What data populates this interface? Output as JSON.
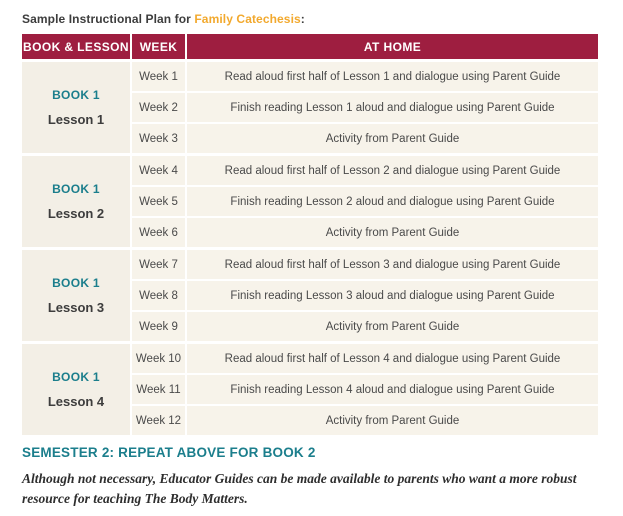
{
  "title": {
    "prefix": "Sample Instructional Plan for",
    "highlight": "Family Catechesis",
    "suffix": ":"
  },
  "table": {
    "headers": [
      "BOOK & LESSON",
      "WEEK",
      "AT HOME"
    ],
    "groups": [
      {
        "book": "BOOK 1",
        "lesson": "Lesson 1",
        "rows": [
          {
            "week": "Week 1",
            "at_home": "Read aloud first half of Lesson 1 and dialogue using Parent Guide"
          },
          {
            "week": "Week 2",
            "at_home": "Finish reading Lesson 1 aloud and dialogue using Parent Guide"
          },
          {
            "week": "Week 3",
            "at_home": "Activity from Parent Guide"
          }
        ]
      },
      {
        "book": "BOOK 1",
        "lesson": "Lesson 2",
        "rows": [
          {
            "week": "Week 4",
            "at_home": "Read aloud first half of Lesson 2 and dialogue using Parent Guide"
          },
          {
            "week": "Week 5",
            "at_home": "Finish reading Lesson 2 aloud and dialogue using Parent Guide"
          },
          {
            "week": "Week 6",
            "at_home": "Activity from Parent Guide"
          }
        ]
      },
      {
        "book": "BOOK 1",
        "lesson": "Lesson 3",
        "rows": [
          {
            "week": "Week 7",
            "at_home": "Read aloud first half of Lesson 3 and dialogue using Parent Guide"
          },
          {
            "week": "Week 8",
            "at_home": "Finish reading Lesson 3 aloud and dialogue using Parent Guide"
          },
          {
            "week": "Week 9",
            "at_home": "Activity from Parent Guide"
          }
        ]
      },
      {
        "book": "BOOK 1",
        "lesson": "Lesson 4",
        "rows": [
          {
            "week": "Week 10",
            "at_home": "Read aloud first half of Lesson 4 and dialogue using Parent Guide"
          },
          {
            "week": "Week 11",
            "at_home": "Finish reading Lesson 4 aloud and dialogue using Parent Guide"
          },
          {
            "week": "Week 12",
            "at_home": "Activity from Parent Guide"
          }
        ]
      }
    ]
  },
  "semester_note": "SEMESTER 2: REPEAT ABOVE FOR BOOK 2",
  "footnote": "Although not necessary, Educator Guides can be made available to parents who want a more robust resource for teaching The Body Matters.",
  "colors": {
    "header_bg": "#9E1E40",
    "accent_teal": "#1B7E8C",
    "accent_amber": "#F2A92E",
    "cell_bg": "#F7F3EA",
    "lesson_cell_bg": "#F3EFE6",
    "body_text": "#4A4A4A"
  }
}
